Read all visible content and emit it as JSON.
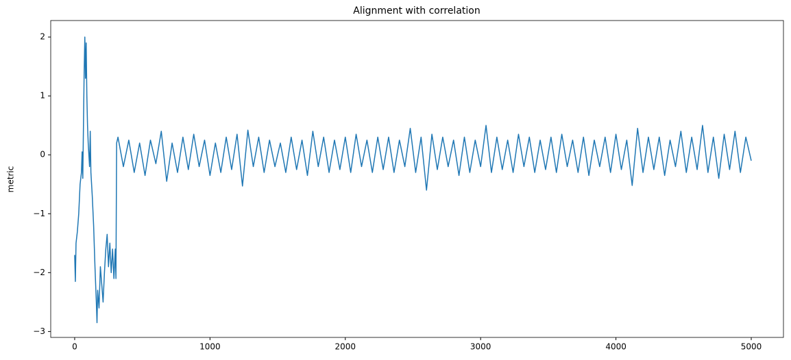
{
  "chart_data": {
    "type": "line",
    "title": "Alignment with correlation",
    "y_label": "metric",
    "x": [
      0,
      5,
      10,
      20,
      30,
      40,
      50,
      55,
      60,
      65,
      70,
      75,
      80,
      85,
      90,
      95,
      100,
      110,
      115,
      120,
      130,
      140,
      150,
      160,
      165,
      170,
      180,
      190,
      200,
      210,
      220,
      230,
      240,
      250,
      260,
      270,
      280,
      290,
      300,
      305,
      310,
      320,
      360,
      400,
      440,
      480,
      520,
      560,
      600,
      640,
      680,
      720,
      760,
      800,
      840,
      880,
      920,
      960,
      1000,
      1040,
      1080,
      1120,
      1160,
      1200,
      1240,
      1280,
      1320,
      1360,
      1400,
      1440,
      1480,
      1520,
      1560,
      1600,
      1640,
      1680,
      1720,
      1760,
      1800,
      1840,
      1880,
      1920,
      1960,
      2000,
      2040,
      2080,
      2120,
      2160,
      2200,
      2240,
      2280,
      2320,
      2360,
      2400,
      2440,
      2480,
      2520,
      2560,
      2600,
      2640,
      2680,
      2720,
      2760,
      2800,
      2840,
      2880,
      2920,
      2960,
      3000,
      3040,
      3080,
      3120,
      3160,
      3200,
      3240,
      3280,
      3320,
      3360,
      3400,
      3440,
      3480,
      3520,
      3560,
      3600,
      3640,
      3680,
      3720,
      3760,
      3800,
      3840,
      3880,
      3920,
      3960,
      4000,
      4040,
      4080,
      4120,
      4160,
      4200,
      4240,
      4280,
      4320,
      4360,
      4400,
      4440,
      4480,
      4520,
      4560,
      4600,
      4640,
      4680,
      4720,
      4760,
      4800,
      4840,
      4880,
      4920,
      4960,
      5000
    ],
    "series": [
      {
        "color": "#1f77b4",
        "values": [
          -1.7,
          -2.15,
          -1.5,
          -1.3,
          -1.0,
          -0.5,
          -0.3,
          0.05,
          -0.4,
          0.5,
          1.4,
          2.0,
          1.3,
          1.9,
          1.0,
          0.5,
          0.2,
          -0.2,
          0.4,
          -0.3,
          -0.7,
          -1.2,
          -1.9,
          -2.5,
          -2.85,
          -2.3,
          -2.6,
          -1.9,
          -2.2,
          -2.5,
          -2.0,
          -1.6,
          -1.35,
          -1.9,
          -1.5,
          -2.0,
          -1.6,
          -2.1,
          -1.6,
          -2.1,
          0.2,
          0.3,
          -0.2,
          0.25,
          -0.3,
          0.2,
          -0.35,
          0.25,
          -0.15,
          0.4,
          -0.45,
          0.2,
          -0.3,
          0.3,
          -0.25,
          0.35,
          -0.2,
          0.25,
          -0.35,
          0.2,
          -0.3,
          0.3,
          -0.25,
          0.35,
          -0.53,
          0.42,
          -0.2,
          0.3,
          -0.3,
          0.25,
          -0.2,
          0.2,
          -0.3,
          0.3,
          -0.25,
          0.25,
          -0.35,
          0.4,
          -0.2,
          0.3,
          -0.3,
          0.25,
          -0.25,
          0.3,
          -0.3,
          0.35,
          -0.2,
          0.25,
          -0.3,
          0.3,
          -0.25,
          0.3,
          -0.3,
          0.25,
          -0.2,
          0.45,
          -0.3,
          0.3,
          -0.6,
          0.35,
          -0.25,
          0.3,
          -0.2,
          0.25,
          -0.35,
          0.3,
          -0.3,
          0.25,
          -0.2,
          0.5,
          -0.3,
          0.3,
          -0.25,
          0.25,
          -0.3,
          0.35,
          -0.2,
          0.3,
          -0.3,
          0.25,
          -0.25,
          0.3,
          -0.3,
          0.35,
          -0.2,
          0.25,
          -0.3,
          0.3,
          -0.35,
          0.25,
          -0.2,
          0.3,
          -0.3,
          0.35,
          -0.25,
          0.25,
          -0.52,
          0.45,
          -0.3,
          0.3,
          -0.25,
          0.3,
          -0.35,
          0.25,
          -0.2,
          0.4,
          -0.3,
          0.3,
          -0.25,
          0.5,
          -0.3,
          0.3,
          -0.4,
          0.35,
          -0.25,
          0.4,
          -0.3,
          0.3,
          -0.1
        ]
      }
    ],
    "xlim": [
      -177,
      5238
    ],
    "xticks": [
      0,
      1000,
      2000,
      3000,
      4000,
      5000
    ],
    "ylim": [
      -3.1,
      2.28
    ],
    "yticks": [
      {
        "value": -3,
        "label": "−3"
      },
      {
        "value": -2,
        "label": "−2"
      },
      {
        "value": -1,
        "label": "−1"
      },
      0,
      1,
      2
    ]
  }
}
